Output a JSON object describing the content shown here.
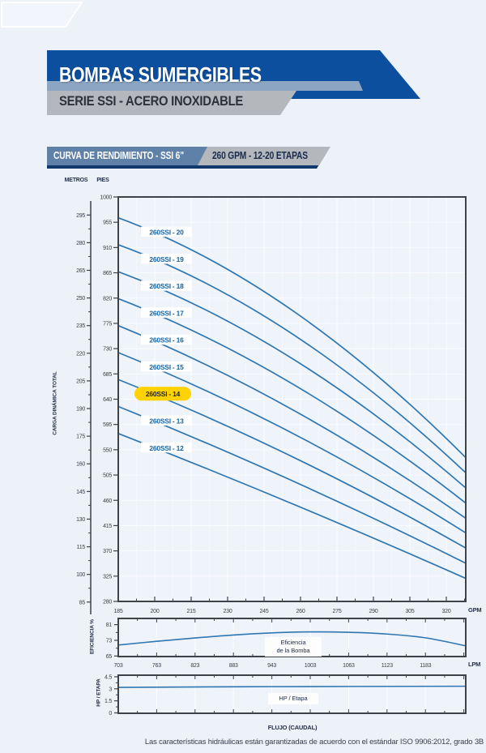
{
  "colors": {
    "page_bg": "#edf1f8",
    "banner_blue": "#0d4f9f",
    "strip_blue": "#8ca5c3",
    "banner_gray": "#b4b8bc",
    "chip_blue": "#5f80a7",
    "navy_shadow": "#10386b",
    "axis_dark": "#3e4347",
    "curve_blue": "#2e77b2",
    "label_blue": "#1565a9",
    "highlight_yellow": "#ffd200"
  },
  "header": {
    "title": "BOMBAS SUMERGIBLES",
    "subtitle": "SERIE SSI - ACERO INOXIDABLE"
  },
  "section": {
    "left": "CURVA DE RENDIMIENTO - SSI 6\"",
    "right": "260 GPM - 12-20 ETAPAS"
  },
  "axis_headers": {
    "metros": "METROS",
    "pies": "PIES"
  },
  "units": {
    "gpm": "GPM",
    "lpm": "LPM"
  },
  "labels": {
    "carga": "CARGA DINÁMICA TOTAL",
    "eficiencia_axis": "EFICIENCIA %",
    "hp_axis": "HP / ETAPA",
    "flujo": "FLUJO (CAUDAL)",
    "eff_box_line1": "Eficiencia",
    "eff_box_line2": "de la Bomba",
    "hp_box": "HP / Etapa"
  },
  "footer": "Las características hidráulicas están garantizadas de acuerdo con el estándar ISO 9906:2012, grado 3B",
  "chart_data": [
    {
      "type": "line",
      "title": "Curvas de rendimiento 260SSI (carga dinámica total vs flujo)",
      "xlabel": "GPM",
      "ylabel": "CARGA DINÁMICA TOTAL",
      "x_range": [
        185,
        328
      ],
      "y_range_pies": [
        280,
        1000
      ],
      "x_ticks": [
        185,
        200,
        215,
        230,
        245,
        260,
        275,
        290,
        305,
        320
      ],
      "y_ticks_pies": [
        1000,
        955,
        910,
        865,
        820,
        775,
        730,
        685,
        640,
        595,
        550,
        505,
        460,
        415,
        370,
        325,
        280
      ],
      "y_ticks_metros": [
        295,
        280,
        265,
        250,
        235,
        220,
        205,
        190,
        175,
        160,
        145,
        130,
        115,
        100,
        85
      ],
      "grid": true,
      "series": [
        {
          "name": "260SSI - 20",
          "stages": 20,
          "highlight": false,
          "points": [
            [
              185,
              963
            ],
            [
              256,
              800
            ],
            [
              328,
              536
            ]
          ]
        },
        {
          "name": "260SSI - 19",
          "stages": 19,
          "highlight": false,
          "points": [
            [
              185,
              915
            ],
            [
              256,
              758
            ],
            [
              328,
              509
            ]
          ]
        },
        {
          "name": "260SSI - 18",
          "stages": 18,
          "highlight": false,
          "points": [
            [
              185,
              867
            ],
            [
              256,
              714
            ],
            [
              328,
              482
            ]
          ]
        },
        {
          "name": "260SSI - 17",
          "stages": 17,
          "highlight": false,
          "points": [
            [
              185,
              819
            ],
            [
              256,
              669
            ],
            [
              328,
              455
            ]
          ]
        },
        {
          "name": "260SSI - 16",
          "stages": 16,
          "highlight": false,
          "points": [
            [
              185,
              771
            ],
            [
              256,
              623
            ],
            [
              328,
              428
            ]
          ]
        },
        {
          "name": "260SSI - 15",
          "stages": 15,
          "highlight": false,
          "points": [
            [
              185,
              723
            ],
            [
              256,
              581
            ],
            [
              328,
              402
            ]
          ]
        },
        {
          "name": "260SSI - 14",
          "stages": 14,
          "highlight": true,
          "points": [
            [
              185,
              675
            ],
            [
              256,
              539
            ],
            [
              328,
              375
            ]
          ]
        },
        {
          "name": "260SSI - 13",
          "stages": 13,
          "highlight": false,
          "points": [
            [
              185,
              627
            ],
            [
              256,
              496
            ],
            [
              328,
              348
            ]
          ]
        },
        {
          "name": "260SSI - 12",
          "stages": 12,
          "highlight": false,
          "points": [
            [
              185,
              579
            ],
            [
              256,
              455
            ],
            [
              328,
              321
            ]
          ]
        }
      ]
    },
    {
      "type": "line",
      "title": "Eficiencia de la Bomba",
      "xlabel": "LPM",
      "ylabel": "EFICIENCIA %",
      "x_range": [
        703,
        1246
      ],
      "y_range": [
        64,
        84
      ],
      "x_ticks": [
        703,
        763,
        823,
        883,
        943,
        1003,
        1063,
        1123,
        1183
      ],
      "y_ticks": [
        81,
        73,
        65
      ],
      "grid": true,
      "points": [
        [
          703,
          70.6
        ],
        [
          763,
          72.5
        ],
        [
          823,
          74.2
        ],
        [
          883,
          75.7
        ],
        [
          943,
          76.8
        ],
        [
          1003,
          77.3
        ],
        [
          1063,
          77.1
        ],
        [
          1123,
          76.2
        ],
        [
          1183,
          74.3
        ],
        [
          1246,
          70.2
        ]
      ]
    },
    {
      "type": "line",
      "title": "HP / Etapa",
      "xlabel": "LPM",
      "ylabel": "HP / ETAPA",
      "x_range": [
        703,
        1246
      ],
      "y_range": [
        0,
        4.8
      ],
      "x_ticks": [
        703,
        763,
        823,
        883,
        943,
        1003,
        1063,
        1123,
        1183
      ],
      "y_ticks": [
        4.5,
        3,
        1.5,
        0
      ],
      "grid": true,
      "points": [
        [
          703,
          3.18
        ],
        [
          943,
          3.27
        ],
        [
          1246,
          3.32
        ]
      ]
    }
  ]
}
